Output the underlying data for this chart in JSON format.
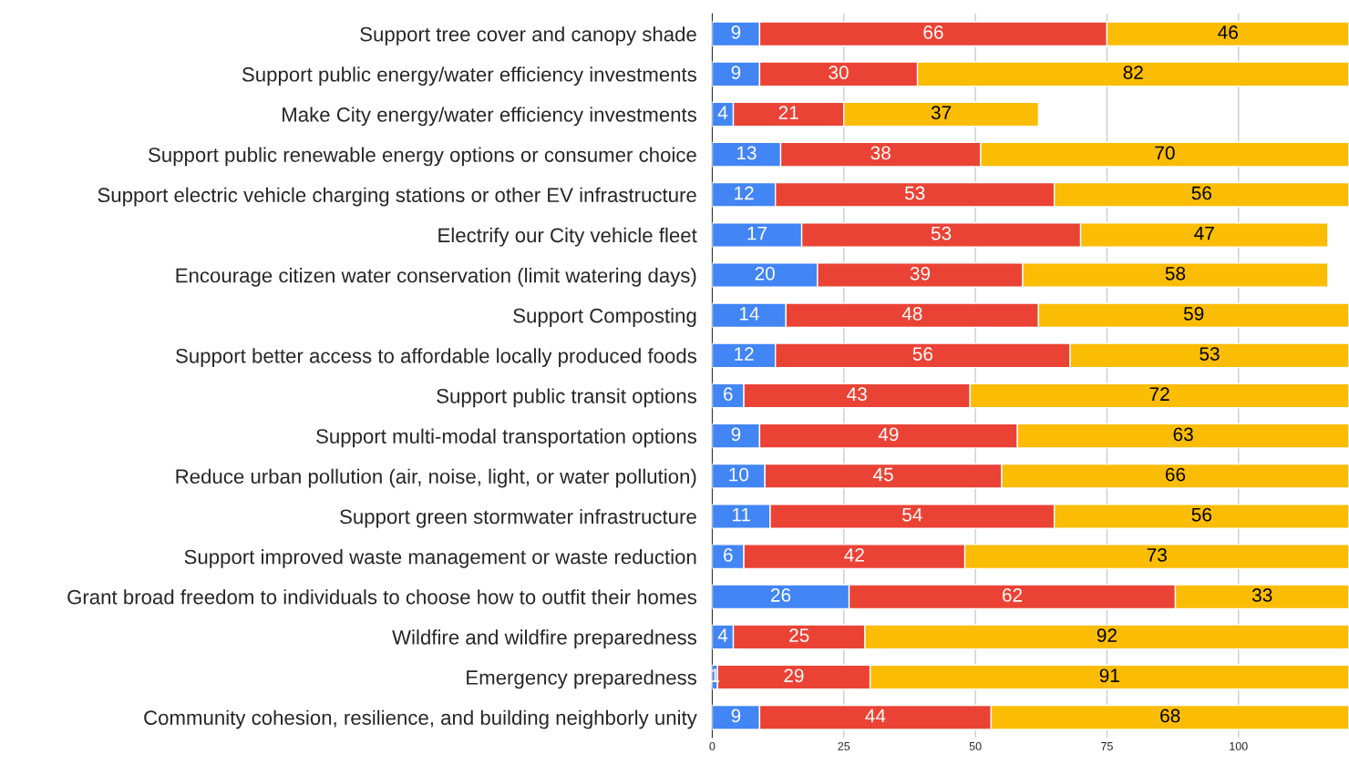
{
  "chart_data": {
    "type": "bar",
    "orientation": "horizontal",
    "stacked": true,
    "data_labels": true,
    "grid": "x",
    "categories": [
      "Support tree cover and canopy shade",
      "Support public energy/water efficiency investments",
      "Make City energy/water efficiency investments",
      "Support public renewable energy options or consumer choice",
      "Support electric vehicle charging stations or other EV infrastructure",
      "Electrify our City vehicle fleet",
      "Encourage citizen water conservation (limit watering days)",
      "Support Composting",
      "Support better access to affordable locally produced foods",
      "Support public transit options",
      "Support multi-modal transportation options",
      "Reduce urban pollution (air, noise, light, or water pollution)",
      "Support green stormwater infrastructure",
      "Support improved waste management or waste reduction",
      "Grant broad freedom to individuals to choose how to outfit their homes",
      "Wildfire and wildfire preparedness",
      "Emergency preparedness",
      "Community cohesion, resilience, and building neighborly unity"
    ],
    "series": [
      {
        "color": "#4285f4",
        "values": [
          9,
          9,
          4,
          13,
          12,
          17,
          20,
          14,
          12,
          6,
          9,
          10,
          11,
          6,
          26,
          4,
          1,
          9
        ]
      },
      {
        "color": "#ea4335",
        "values": [
          66,
          30,
          21,
          38,
          53,
          53,
          39,
          48,
          56,
          43,
          49,
          45,
          54,
          42,
          62,
          25,
          29,
          44
        ]
      },
      {
        "color": "#fbbc04",
        "values": [
          46,
          82,
          37,
          70,
          56,
          47,
          58,
          59,
          53,
          72,
          63,
          66,
          56,
          73,
          33,
          92,
          91,
          68
        ]
      }
    ],
    "xlim": [
      0,
      121
    ],
    "xticks": [
      0,
      25,
      50,
      75,
      100
    ]
  }
}
